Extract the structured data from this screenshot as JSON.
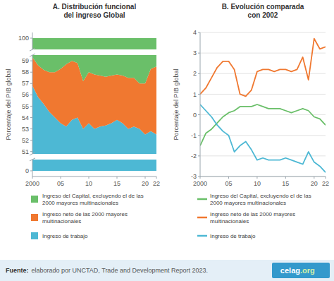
{
  "chart_data": [
    {
      "type": "area",
      "stacked": true,
      "title": "A. Distribución funcional\ndel ingreso Global",
      "ylabel": "Porcentaje del PIB global",
      "x": [
        2000,
        2001,
        2002,
        2003,
        2004,
        2005,
        2006,
        2007,
        2008,
        2009,
        2010,
        2011,
        2012,
        2013,
        2014,
        2015,
        2016,
        2017,
        2018,
        2019,
        2020,
        2021,
        2022
      ],
      "xlim": [
        2000,
        2022
      ],
      "xticks": [
        2000,
        {
          "value": 2005,
          "label": "05"
        },
        {
          "value": 2010,
          "label": "10"
        },
        {
          "value": 2015,
          "label": "15"
        },
        {
          "value": 2020,
          "label": "20"
        },
        {
          "value": 2022,
          "label": "22"
        }
      ],
      "ylim": [
        -0.5,
        100.5
      ],
      "ybreaks": [
        [
          1.0,
          50.8
        ],
        [
          59.5,
          99
        ]
      ],
      "yticks": [
        0,
        51,
        52,
        53,
        54,
        55,
        56,
        57,
        58,
        59,
        100
      ],
      "legend": "bottom",
      "series": [
        {
          "name": "Ingreso de trabajo",
          "color": "#4db8d4",
          "values": [
            56.8,
            55.8,
            55.2,
            54.5,
            54.0,
            53.5,
            53.2,
            53.8,
            54.0,
            53.0,
            53.5,
            53.0,
            53.2,
            53.3,
            53.5,
            53.8,
            53.5,
            53.0,
            53.2,
            53.0,
            52.5,
            52.8,
            52.5
          ]
        },
        {
          "name": "Ingreso neto de las 2000 mayores\nmultinacionales",
          "color": "#f07830",
          "values": [
            2.5,
            2.8,
            3.0,
            3.5,
            4.0,
            4.8,
            5.5,
            5.2,
            4.8,
            4.2,
            4.5,
            4.8,
            4.5,
            4.3,
            4.2,
            4.0,
            4.2,
            4.5,
            4.3,
            4.0,
            4.5,
            5.5,
            6.0
          ]
        },
        {
          "name": "Ingreso del Capital, excluyendo el de las\n2000 mayores multinacionales",
          "color": "#6abf69",
          "values": [
            40.7,
            41.4,
            41.8,
            42.0,
            42.0,
            41.7,
            41.3,
            41.0,
            41.2,
            42.8,
            42.0,
            42.2,
            42.3,
            42.4,
            42.3,
            42.2,
            42.3,
            42.5,
            42.5,
            43.0,
            43.0,
            41.7,
            41.5
          ]
        }
      ]
    },
    {
      "type": "line",
      "title": "B. Evolución comparada\ncon 2002",
      "ylabel": "Porcentaje del PIB global",
      "x": [
        2000,
        2001,
        2002,
        2003,
        2004,
        2005,
        2006,
        2007,
        2008,
        2009,
        2010,
        2011,
        2012,
        2013,
        2014,
        2015,
        2016,
        2017,
        2018,
        2019,
        2020,
        2021,
        2022
      ],
      "xlim": [
        2000,
        2022
      ],
      "xticks": [
        2000,
        {
          "value": 2005,
          "label": "05"
        },
        {
          "value": 2010,
          "label": "10"
        },
        {
          "value": 2015,
          "label": "15"
        },
        {
          "value": 2020,
          "label": "20"
        },
        {
          "value": 2022,
          "label": "22"
        }
      ],
      "ylim": [
        -3,
        4
      ],
      "yticks": [
        -3,
        -2,
        -1,
        0,
        1,
        2,
        3,
        4
      ],
      "grid": true,
      "legend": "bottom",
      "series": [
        {
          "name": "Ingreso del Capital, excluyendo el de las\n2000 mayores multinacionales",
          "color": "#6abf69",
          "values": [
            -1.5,
            -0.9,
            -0.7,
            -0.4,
            -0.1,
            0.1,
            0.2,
            0.4,
            0.4,
            0.4,
            0.5,
            0.4,
            0.3,
            0.3,
            0.3,
            0.2,
            0.1,
            0.2,
            0.3,
            0.2,
            -0.1,
            -0.2,
            -0.5
          ]
        },
        {
          "name": "Ingreso neto de las 2000 mayores\nmultinacionales",
          "color": "#f07830",
          "values": [
            1.0,
            1.3,
            1.8,
            2.3,
            2.6,
            2.6,
            2.2,
            1.0,
            0.9,
            1.2,
            2.1,
            2.2,
            2.2,
            2.1,
            2.2,
            2.2,
            2.1,
            2.2,
            2.8,
            1.7,
            3.7,
            3.2,
            3.3
          ]
        },
        {
          "name": "Ingreso de trabajo",
          "color": "#4db8d4",
          "values": [
            0.5,
            0.2,
            -0.1,
            -0.5,
            -0.8,
            -1.0,
            -1.8,
            -1.5,
            -1.3,
            -1.7,
            -2.2,
            -2.1,
            -2.2,
            -2.2,
            -2.2,
            -2.1,
            -2.2,
            -2.3,
            -2.4,
            -1.8,
            -2.3,
            -2.5,
            -2.8
          ]
        }
      ],
      "annotations": [
        "Fuente:",
        "elaborado por UNCTAD, Trade and Development Report 2023.",
        "celag",
        ".org"
      ]
    }
  ]
}
